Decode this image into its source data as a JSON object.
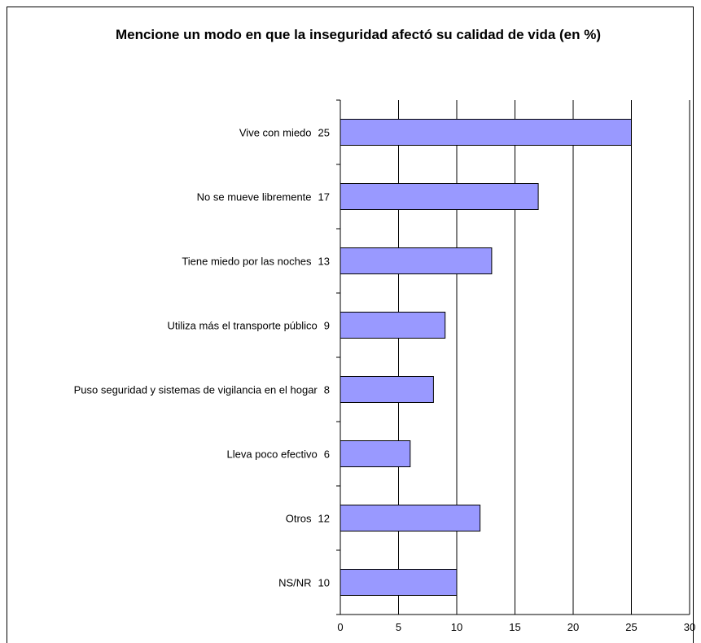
{
  "chart_data": {
    "type": "bar",
    "orientation": "horizontal",
    "title": "Mencione un modo en que la inseguridad afectó su calidad de vida (en %)",
    "categories": [
      "Vive con miedo",
      "No se mueve libremente",
      "Tiene miedo por las noches",
      "Utiliza más el transporte público",
      "Puso seguridad y sistemas de vigilancia en el hogar",
      "Lleva poco efectivo",
      "Otros",
      "NS/NR"
    ],
    "values": [
      25,
      17,
      13,
      9,
      8,
      6,
      12,
      10
    ],
    "color": "#9999ff",
    "xlim": [
      0,
      30
    ],
    "xticks": [
      0,
      5,
      10,
      15,
      20,
      25,
      30
    ],
    "grid": true
  }
}
